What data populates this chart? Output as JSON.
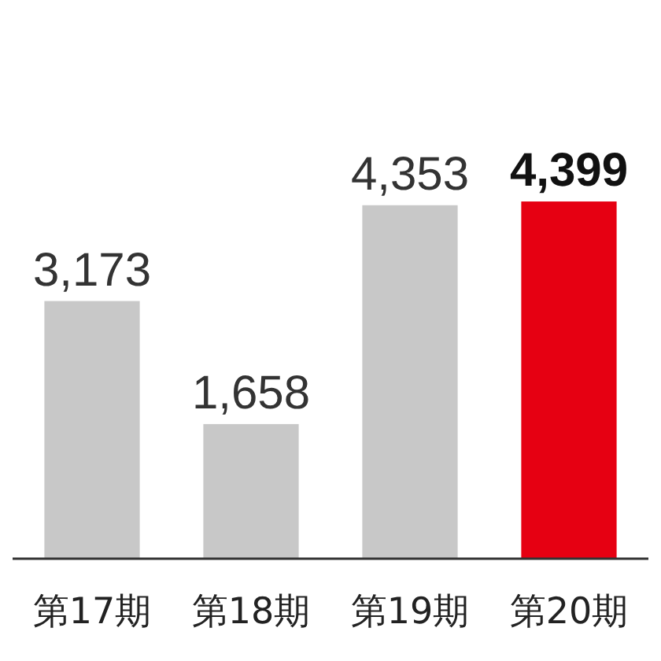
{
  "chart_data": {
    "type": "bar",
    "categories": [
      "第17期",
      "第18期",
      "第19期",
      "第20期"
    ],
    "values": [
      3173,
      1658,
      4353,
      4399
    ],
    "colors": [
      "#c8c8c8",
      "#c8c8c8",
      "#c8c8c8",
      "#e60012"
    ],
    "value_labels": [
      "3,173",
      "1,658",
      "4,353",
      "4,399"
    ]
  }
}
